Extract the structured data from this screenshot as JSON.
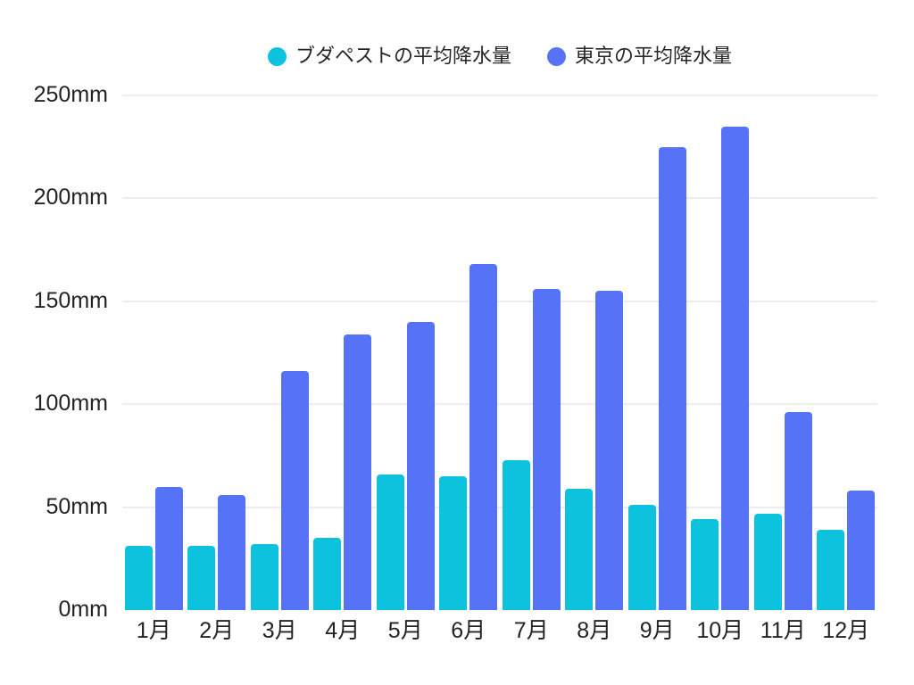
{
  "chart_data": {
    "type": "bar",
    "title": "",
    "categories": [
      "1月",
      "2月",
      "3月",
      "4月",
      "5月",
      "6月",
      "7月",
      "8月",
      "9月",
      "10月",
      "11月",
      "12月"
    ],
    "series": [
      {
        "id": "budapest",
        "name": "ブダペストの平均降水量",
        "color": "#0dc2dc",
        "values": [
          31,
          31,
          32,
          35,
          66,
          65,
          73,
          59,
          51,
          44,
          47,
          39
        ]
      },
      {
        "id": "tokyo",
        "name": "東京の平均降水量",
        "color": "#5673f7",
        "values": [
          60,
          56,
          116,
          134,
          140,
          168,
          156,
          155,
          225,
          235,
          96,
          58
        ]
      }
    ],
    "unit": "mm",
    "y_ticks": [
      {
        "value": 0,
        "label": "0mm"
      },
      {
        "value": 50,
        "label": "50mm"
      },
      {
        "value": 100,
        "label": "100mm"
      },
      {
        "value": 150,
        "label": "150mm"
      },
      {
        "value": 200,
        "label": "200mm"
      },
      {
        "value": 250,
        "label": "250mm"
      }
    ],
    "ylim": [
      0,
      250
    ],
    "xlabel": "",
    "ylabel": "",
    "grid": "horizontal",
    "legend_position": "top",
    "background_color": "#ffffff",
    "gridline_color": "#ededed",
    "text_color": "#232323"
  }
}
